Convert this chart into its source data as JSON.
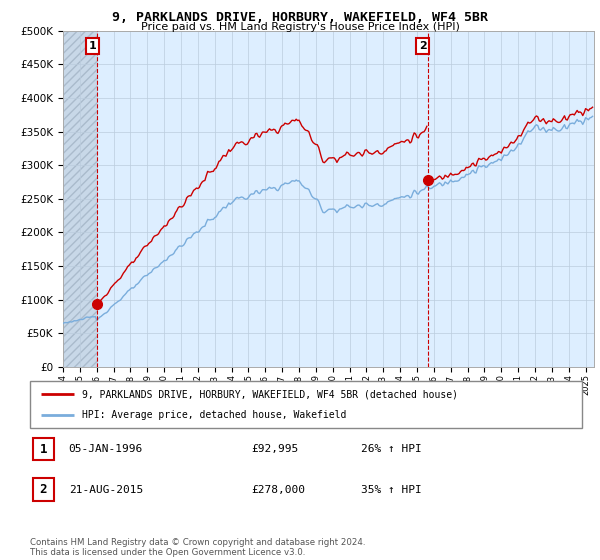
{
  "title": "9, PARKLANDS DRIVE, HORBURY, WAKEFIELD, WF4 5BR",
  "subtitle": "Price paid vs. HM Land Registry's House Price Index (HPI)",
  "ytick_values": [
    0,
    50000,
    100000,
    150000,
    200000,
    250000,
    300000,
    350000,
    400000,
    450000,
    500000
  ],
  "ylim": [
    0,
    500000
  ],
  "xlim_start": 1994.0,
  "xlim_end": 2025.5,
  "sale1_x": 1996.03,
  "sale1_y": 92995,
  "sale2_x": 2015.64,
  "sale2_y": 278000,
  "sale1_date": "05-JAN-1996",
  "sale1_price": "£92,995",
  "sale1_hpi": "26% ↑ HPI",
  "sale2_date": "21-AUG-2015",
  "sale2_price": "£278,000",
  "sale2_hpi": "35% ↑ HPI",
  "property_line_color": "#cc0000",
  "hpi_line_color": "#7aaddc",
  "legend_property": "9, PARKLANDS DRIVE, HORBURY, WAKEFIELD, WF4 5BR (detached house)",
  "legend_hpi": "HPI: Average price, detached house, Wakefield",
  "footer": "Contains HM Land Registry data © Crown copyright and database right 2024.\nThis data is licensed under the Open Government Licence v3.0.",
  "background_color": "#ffffff",
  "chart_bg_color": "#ddeeff",
  "grid_color": "#bbccdd"
}
